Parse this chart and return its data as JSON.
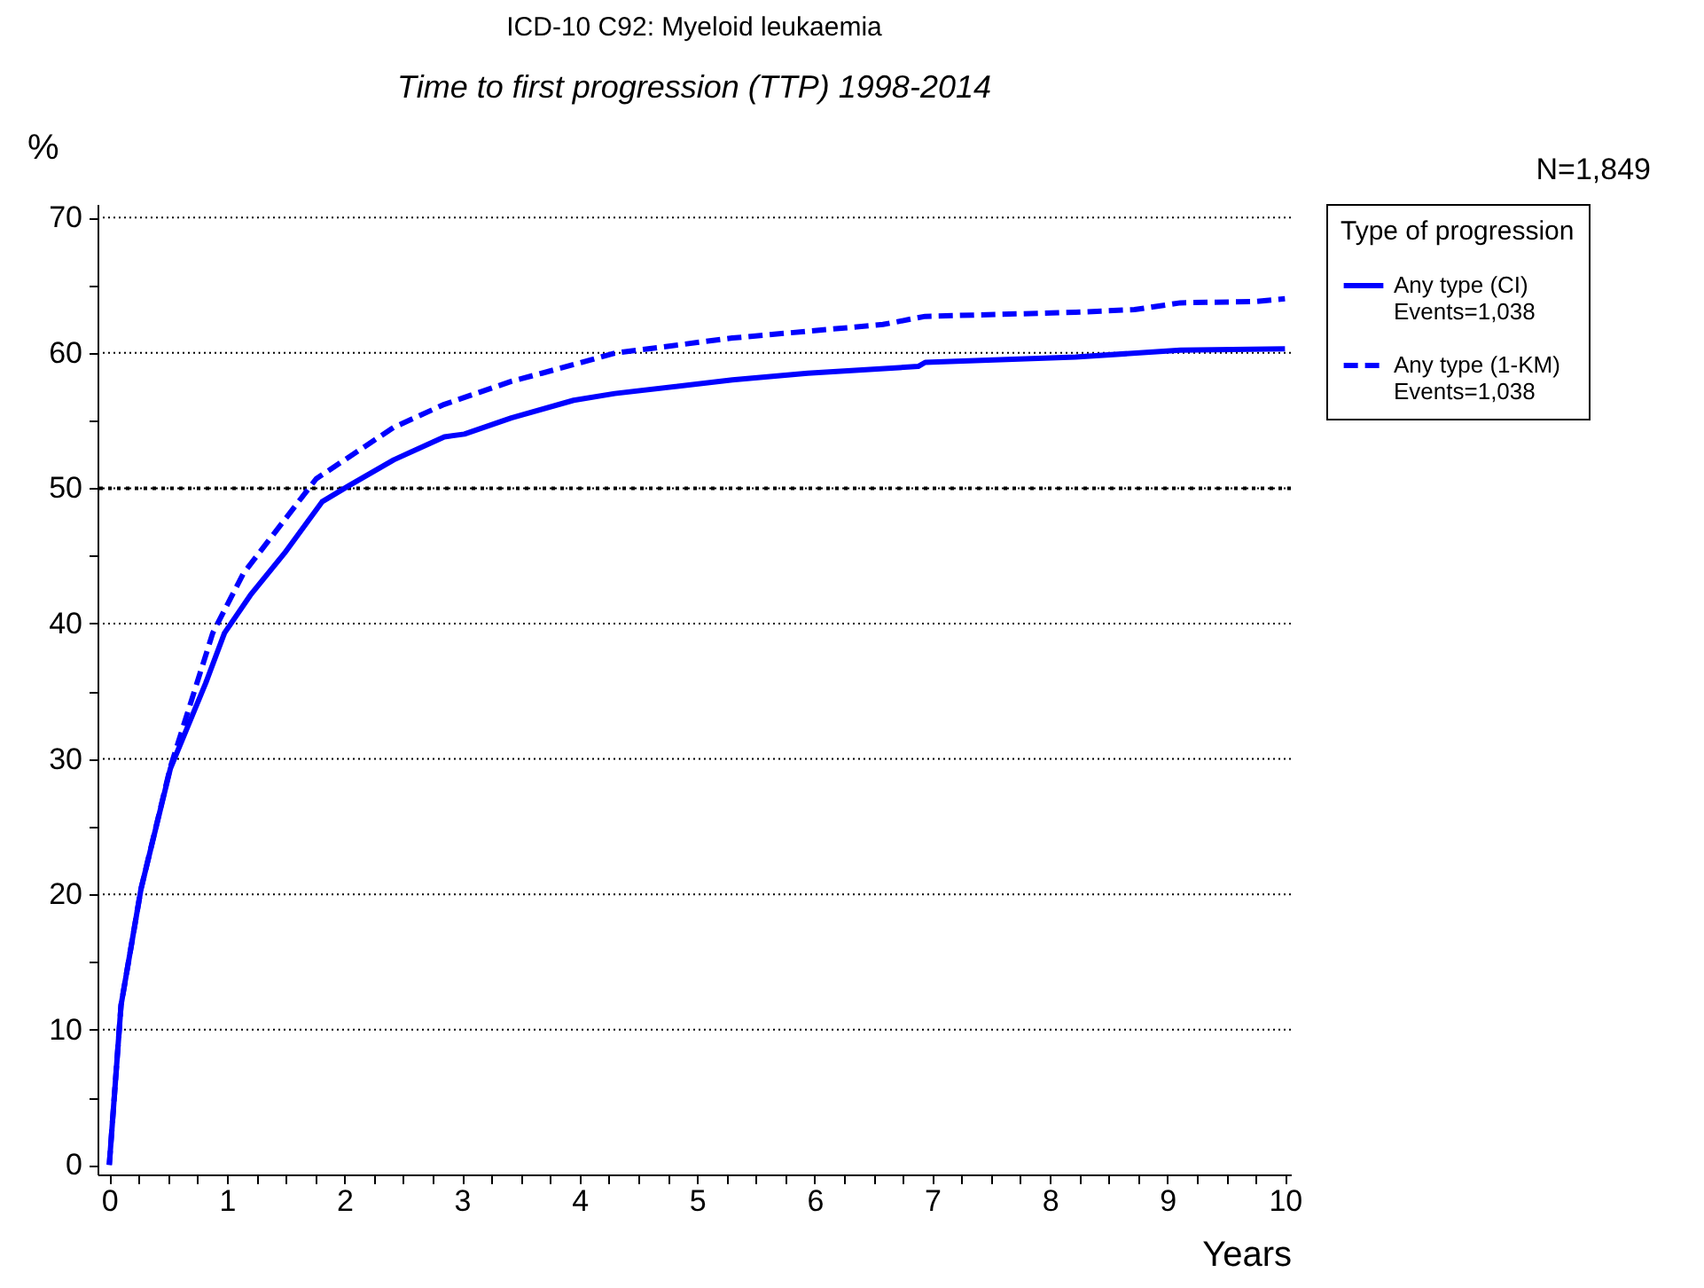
{
  "chart_data": {
    "type": "line",
    "title": "ICD-10 C92: Myeloid leukaemia",
    "subtitle": "Time to first progression (TTP) 1998-2014",
    "xlabel": "Years",
    "ylabel": "%",
    "legend_title": "Type of progression",
    "annotations": [
      "N=1,849"
    ],
    "xlim": [
      -0.1,
      10.05
    ],
    "ylim": [
      -0.7,
      71
    ],
    "xticks": [
      0,
      {
        "value": 0.25,
        "label": null
      },
      {
        "value": 0.5,
        "label": null
      },
      {
        "value": 0.75,
        "label": null
      },
      1,
      {
        "value": 1.25,
        "label": null
      },
      {
        "value": 1.5,
        "label": null
      },
      {
        "value": 1.75,
        "label": null
      },
      2,
      {
        "value": 2.25,
        "label": null
      },
      {
        "value": 2.5,
        "label": null
      },
      {
        "value": 2.75,
        "label": null
      },
      3,
      {
        "value": 3.25,
        "label": null
      },
      {
        "value": 3.5,
        "label": null
      },
      {
        "value": 3.75,
        "label": null
      },
      4,
      {
        "value": 4.25,
        "label": null
      },
      {
        "value": 4.5,
        "label": null
      },
      {
        "value": 4.75,
        "label": null
      },
      5,
      {
        "value": 5.25,
        "label": null
      },
      {
        "value": 5.5,
        "label": null
      },
      {
        "value": 5.75,
        "label": null
      },
      6,
      {
        "value": 6.25,
        "label": null
      },
      {
        "value": 6.5,
        "label": null
      },
      {
        "value": 6.75,
        "label": null
      },
      7,
      {
        "value": 7.25,
        "label": null
      },
      {
        "value": 7.5,
        "label": null
      },
      {
        "value": 7.75,
        "label": null
      },
      8,
      {
        "value": 8.25,
        "label": null
      },
      {
        "value": 8.5,
        "label": null
      },
      {
        "value": 8.75,
        "label": null
      },
      9,
      {
        "value": 9.25,
        "label": null
      },
      {
        "value": 9.5,
        "label": null
      },
      {
        "value": 9.75,
        "label": null
      },
      10
    ],
    "yticks": [
      0,
      {
        "value": 5,
        "label": null
      },
      10,
      {
        "value": 15,
        "label": null
      },
      20,
      {
        "value": 25,
        "label": null
      },
      30,
      {
        "value": 35,
        "label": null
      },
      40,
      {
        "value": 45,
        "label": null
      },
      50,
      {
        "value": 55,
        "label": null
      },
      60,
      {
        "value": 65,
        "label": null
      },
      70
    ],
    "grid": "y",
    "legend": "top right",
    "marker": "none",
    "ref_lines": [
      {
        "axis": "y",
        "value": 50,
        "color": "#000000",
        "line_style": "dotted"
      }
    ],
    "series": [
      {
        "name": "Any type (CI)\nEvents=1,038",
        "color": "#0000ff",
        "line_style": "solid",
        "x": [
          0,
          0.1,
          0.27,
          0.52,
          0.82,
          0.98,
          1.2,
          1.49,
          1.81,
          2.04,
          2.42,
          2.85,
          3.02,
          3.42,
          3.95,
          4.3,
          5.3,
          5.94,
          6.88,
          6.94,
          8.22,
          9.11,
          10
        ],
        "values": [
          0,
          11.8,
          20.4,
          29.3,
          35.6,
          39.3,
          42.1,
          45.2,
          49,
          50.2,
          52.1,
          53.8,
          54,
          55.2,
          56.5,
          57,
          58,
          58.5,
          59,
          59.3,
          59.7,
          60.2,
          60.3
        ]
      },
      {
        "name": "Any type (1-KM)\nEvents=1,038",
        "color": "#0000ff",
        "line_style": "dashed",
        "x": [
          0,
          0.1,
          0.27,
          0.52,
          0.88,
          1.14,
          1.76,
          2.42,
          2.85,
          3.42,
          3.68,
          4.31,
          5.3,
          6.58,
          6.94,
          8.22,
          8.72,
          9.11,
          9.76,
          10
        ],
        "values": [
          0,
          11.8,
          20.4,
          29.4,
          39.3,
          43.7,
          50.7,
          54.5,
          56.2,
          57.9,
          58.5,
          60,
          61.1,
          62.1,
          62.7,
          63,
          63.2,
          63.7,
          63.8,
          64
        ]
      }
    ]
  }
}
